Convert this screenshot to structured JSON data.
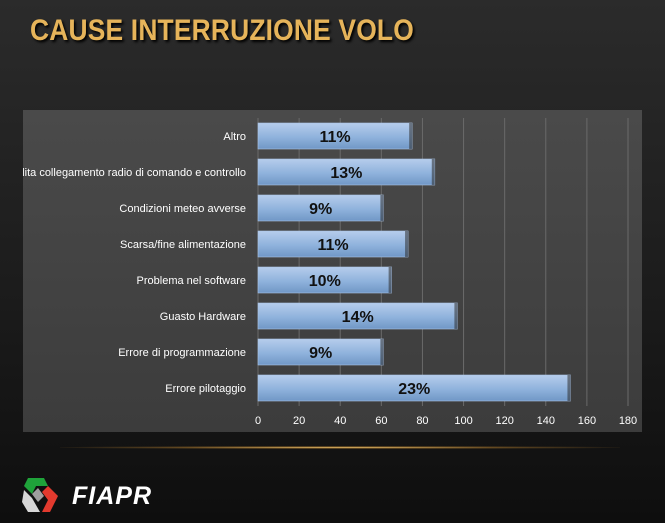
{
  "slide": {
    "title": "CAUSE INTERRUZIONE VOLO",
    "logo_text": "FIAPR"
  },
  "colors": {
    "title": "#e6b45a",
    "bar_fill": "#8fb2dc",
    "panel": "#444444",
    "grid": "#6a6a6a",
    "label_text": "#ffffff",
    "value_text": "#111111"
  },
  "chart_data": {
    "type": "bar",
    "orientation": "horizontal",
    "categories": [
      "Altro",
      "Perdita collegamento radio di comando e controllo",
      "Condizioni meteo avverse",
      "Scarsa/fine alimentazione",
      "Problema nel software",
      "Guasto Hardware",
      "Errore di programmazione",
      "Errore pilotaggio"
    ],
    "values": [
      75,
      86,
      61,
      73,
      65,
      97,
      61,
      152
    ],
    "data_labels": [
      "11%",
      "13%",
      "9%",
      "11%",
      "10%",
      "14%",
      "9%",
      "23%"
    ],
    "xlim": [
      0,
      180
    ],
    "x_ticks": [
      "0",
      "20",
      "40",
      "60",
      "80",
      "100",
      "120",
      "140",
      "160",
      "180"
    ],
    "grid": true,
    "legend": "none",
    "title": "",
    "xlabel": "",
    "ylabel": ""
  }
}
